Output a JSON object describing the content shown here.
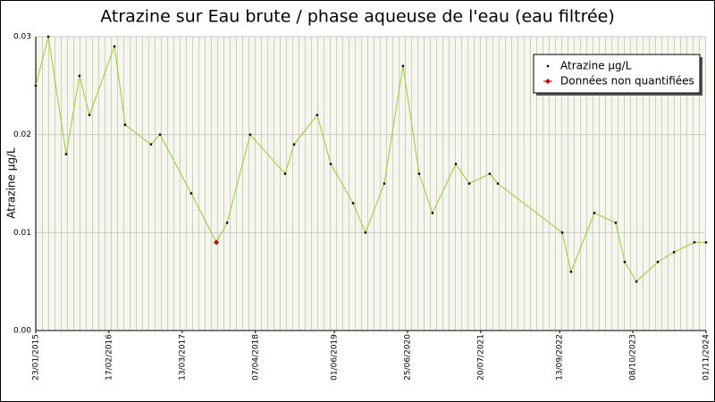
{
  "chart_data": {
    "type": "line",
    "title": "Atrazine sur Eau brute / phase aqueuse de l'eau (eau filtrée)",
    "y_label": "Atrazine µg/L",
    "x": [
      "23/01/2015",
      "31/03/2015",
      "04/07/2015",
      "13/09/2015",
      "05/11/2015",
      "17/03/2016",
      "13/05/2016",
      "28/09/2016",
      "15/11/2016",
      "30/04/2017",
      "11/09/2017",
      "07/11/2017",
      "10/03/2018",
      "12/09/2018",
      "30/10/2018",
      "02/03/2019",
      "13/05/2019",
      "09/09/2019",
      "14/11/2019",
      "22/02/2020",
      "01/06/2020",
      "26/08/2020",
      "05/11/2020",
      "09/03/2021",
      "20/05/2021",
      "06/09/2021",
      "19/10/2021",
      "27/09/2022",
      "13/11/2022",
      "17/03/2023",
      "09/07/2023",
      "26/08/2023",
      "27/10/2023",
      "18/02/2024",
      "14/05/2024",
      "31/08/2024",
      "01/11/2024"
    ],
    "series": [
      {
        "name": "Atrazine µg/L",
        "color": "#99cc33",
        "marker_color": "#000000",
        "values": [
          0.025,
          0.03,
          0.018,
          0.026,
          0.022,
          0.029,
          0.021,
          0.019,
          0.02,
          0.014,
          0.009,
          0.011,
          0.02,
          0.016,
          0.019,
          0.022,
          0.017,
          0.013,
          0.01,
          0.015,
          0.027,
          0.016,
          0.012,
          0.017,
          0.015,
          0.016,
          0.015,
          0.01,
          0.006,
          0.012,
          0.011,
          0.007,
          0.005,
          0.007,
          0.008,
          0.009,
          0.009
        ]
      },
      {
        "name": "Données non quantifiées",
        "color": "#cc0000",
        "values": [
          null,
          null,
          null,
          null,
          null,
          null,
          null,
          null,
          null,
          null,
          0.009,
          null,
          null,
          null,
          null,
          null,
          null,
          null,
          null,
          null,
          null,
          null,
          null,
          null,
          null,
          null,
          null,
          null,
          null,
          null,
          null,
          null,
          null,
          null,
          null,
          null,
          null
        ]
      }
    ],
    "xlim": [
      "23/01/2015",
      "01/11/2024"
    ],
    "xticks": [
      "23/01/2015",
      "17/02/2016",
      "13/03/2017",
      "07/04/2018",
      "01/06/2019",
      "25/06/2020",
      "20/07/2021",
      "13/09/2022",
      "08/10/2023",
      "01/11/2024"
    ],
    "ylim": [
      0,
      0.03
    ],
    "yticks": [
      {
        "value": 0,
        "label": "0.00"
      },
      {
        "value": 0.01,
        "label": "0.01"
      },
      {
        "value": 0.02,
        "label": "0.02"
      },
      {
        "value": 0.03,
        "label": "0.03"
      }
    ],
    "grid": true,
    "legend": "top-right"
  }
}
